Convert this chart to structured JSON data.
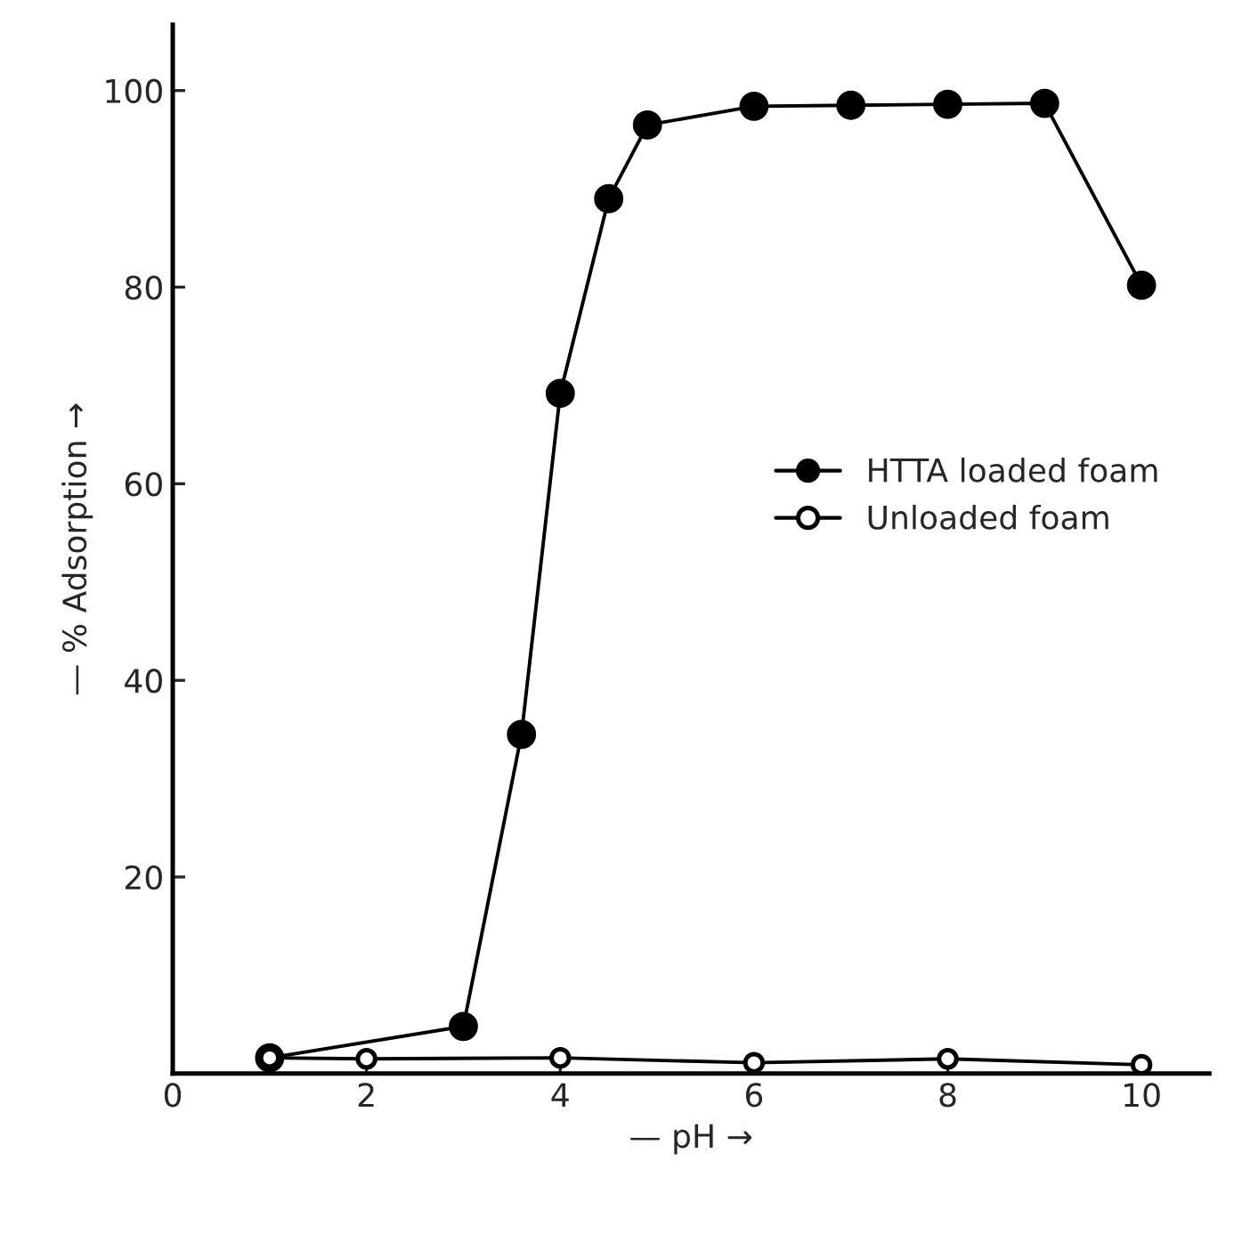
{
  "chart_data": {
    "type": "line",
    "xlabel": "— pH →",
    "ylabel": "— % Adsorption →",
    "xlim": [
      0,
      10.7
    ],
    "ylim": [
      0,
      106.7
    ],
    "xticks": [
      0,
      2,
      4,
      6,
      8,
      10
    ],
    "yticks": [
      20,
      40,
      60,
      80,
      100
    ],
    "grid": false,
    "legend": "right",
    "line_style": "solid",
    "series": [
      {
        "name": "HTTA loaded foam",
        "color": "#000000",
        "marker": "circle",
        "x": [
          1,
          2,
          3,
          3.6,
          4,
          4.5,
          4.9,
          6,
          7,
          8,
          9,
          10
        ],
        "values": [
          1.6,
          null,
          4.8,
          34.5,
          69.2,
          89,
          96.5,
          98.4,
          98.5,
          98.6,
          98.7,
          80.2
        ]
      },
      {
        "name": "Unloaded foam",
        "color": "#000000",
        "marker": "circle",
        "x": [
          1,
          2,
          4,
          6,
          8,
          10
        ],
        "values": [
          1.6,
          1.5,
          1.6,
          1.1,
          1.5,
          0.9
        ]
      }
    ]
  }
}
